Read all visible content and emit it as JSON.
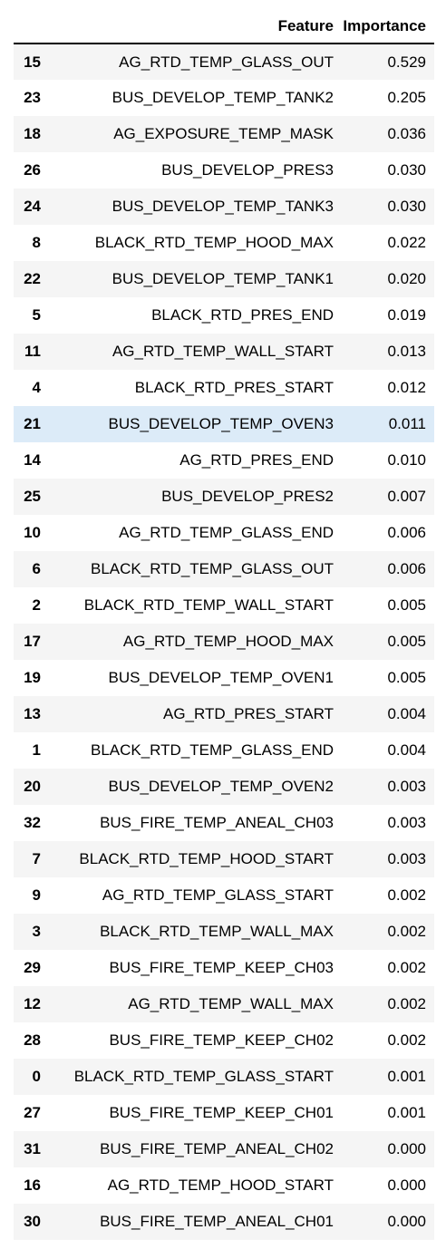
{
  "table": {
    "columns": {
      "index": "",
      "feature": "Feature",
      "importance": "Importance"
    },
    "highlighted_row": 10,
    "rows": [
      {
        "index": "15",
        "feature": "AG_RTD_TEMP_GLASS_OUT",
        "importance": "0.529"
      },
      {
        "index": "23",
        "feature": "BUS_DEVELOP_TEMP_TANK2",
        "importance": "0.205"
      },
      {
        "index": "18",
        "feature": "AG_EXPOSURE_TEMP_MASK",
        "importance": "0.036"
      },
      {
        "index": "26",
        "feature": "BUS_DEVELOP_PRES3",
        "importance": "0.030"
      },
      {
        "index": "24",
        "feature": "BUS_DEVELOP_TEMP_TANK3",
        "importance": "0.030"
      },
      {
        "index": "8",
        "feature": "BLACK_RTD_TEMP_HOOD_MAX",
        "importance": "0.022"
      },
      {
        "index": "22",
        "feature": "BUS_DEVELOP_TEMP_TANK1",
        "importance": "0.020"
      },
      {
        "index": "5",
        "feature": "BLACK_RTD_PRES_END",
        "importance": "0.019"
      },
      {
        "index": "11",
        "feature": "AG_RTD_TEMP_WALL_START",
        "importance": "0.013"
      },
      {
        "index": "4",
        "feature": "BLACK_RTD_PRES_START",
        "importance": "0.012"
      },
      {
        "index": "21",
        "feature": "BUS_DEVELOP_TEMP_OVEN3",
        "importance": "0.011"
      },
      {
        "index": "14",
        "feature": "AG_RTD_PRES_END",
        "importance": "0.010"
      },
      {
        "index": "25",
        "feature": "BUS_DEVELOP_PRES2",
        "importance": "0.007"
      },
      {
        "index": "10",
        "feature": "AG_RTD_TEMP_GLASS_END",
        "importance": "0.006"
      },
      {
        "index": "6",
        "feature": "BLACK_RTD_TEMP_GLASS_OUT",
        "importance": "0.006"
      },
      {
        "index": "2",
        "feature": "BLACK_RTD_TEMP_WALL_START",
        "importance": "0.005"
      },
      {
        "index": "17",
        "feature": "AG_RTD_TEMP_HOOD_MAX",
        "importance": "0.005"
      },
      {
        "index": "19",
        "feature": "BUS_DEVELOP_TEMP_OVEN1",
        "importance": "0.005"
      },
      {
        "index": "13",
        "feature": "AG_RTD_PRES_START",
        "importance": "0.004"
      },
      {
        "index": "1",
        "feature": "BLACK_RTD_TEMP_GLASS_END",
        "importance": "0.004"
      },
      {
        "index": "20",
        "feature": "BUS_DEVELOP_TEMP_OVEN2",
        "importance": "0.003"
      },
      {
        "index": "32",
        "feature": "BUS_FIRE_TEMP_ANEAL_CH03",
        "importance": "0.003"
      },
      {
        "index": "7",
        "feature": "BLACK_RTD_TEMP_HOOD_START",
        "importance": "0.003"
      },
      {
        "index": "9",
        "feature": "AG_RTD_TEMP_GLASS_START",
        "importance": "0.002"
      },
      {
        "index": "3",
        "feature": "BLACK_RTD_TEMP_WALL_MAX",
        "importance": "0.002"
      },
      {
        "index": "29",
        "feature": "BUS_FIRE_TEMP_KEEP_CH03",
        "importance": "0.002"
      },
      {
        "index": "12",
        "feature": "AG_RTD_TEMP_WALL_MAX",
        "importance": "0.002"
      },
      {
        "index": "28",
        "feature": "BUS_FIRE_TEMP_KEEP_CH02",
        "importance": "0.002"
      },
      {
        "index": "0",
        "feature": "BLACK_RTD_TEMP_GLASS_START",
        "importance": "0.001"
      },
      {
        "index": "27",
        "feature": "BUS_FIRE_TEMP_KEEP_CH01",
        "importance": "0.001"
      },
      {
        "index": "31",
        "feature": "BUS_FIRE_TEMP_ANEAL_CH02",
        "importance": "0.000"
      },
      {
        "index": "16",
        "feature": "AG_RTD_TEMP_HOOD_START",
        "importance": "0.000"
      },
      {
        "index": "30",
        "feature": "BUS_FIRE_TEMP_ANEAL_CH01",
        "importance": "0.000"
      }
    ]
  }
}
